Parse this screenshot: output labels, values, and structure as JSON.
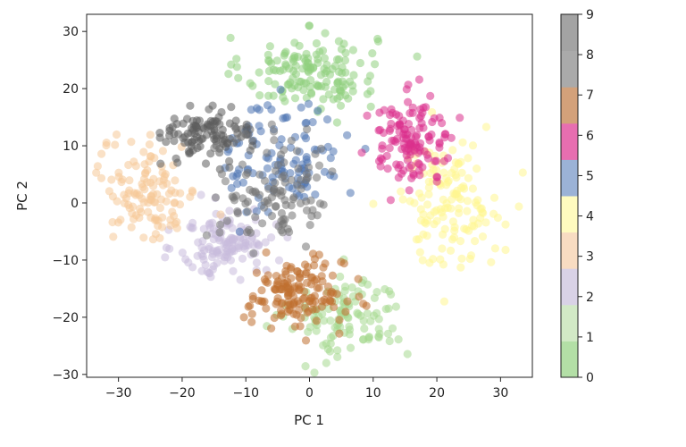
{
  "chart_data": {
    "type": "scatter",
    "title": "",
    "xlabel": "PC 1",
    "ylabel": "PC 2",
    "xlim": [
      -35,
      35
    ],
    "ylim": [
      -30.5,
      33
    ],
    "x_ticks": [
      -30,
      -20,
      -10,
      0,
      10,
      20,
      30
    ],
    "y_ticks": [
      -30,
      -20,
      -10,
      0,
      10,
      20,
      30
    ],
    "x_tick_labels": [
      "−30",
      "−20",
      "−10",
      "0",
      "10",
      "20",
      "30"
    ],
    "y_tick_labels": [
      "−30",
      "−20",
      "−10",
      "0",
      "10",
      "20",
      "30"
    ],
    "grid": false,
    "marker_alpha": 0.55,
    "colorbar": {
      "range": [
        0,
        9
      ],
      "ticks": [
        "0",
        "1",
        "2",
        "3",
        "4",
        "5",
        "6",
        "7",
        "8",
        "9"
      ],
      "colors": [
        "#b3dfa6",
        "#d2e9c6",
        "#d9d2e6",
        "#f8dcc2",
        "#fffbbf",
        "#9bb2d6",
        "#e76eb0",
        "#d3a17a",
        "#aaaaaa",
        "#a3a3a3"
      ]
    },
    "series": [
      {
        "label": "0",
        "color": "#8fcf7e",
        "n": 150,
        "center": [
          0,
          23
        ],
        "spread": [
          7,
          4.5
        ]
      },
      {
        "label": "1",
        "color": "#a5d88f",
        "n": 110,
        "center": [
          6,
          -20
        ],
        "spread": [
          6,
          5
        ]
      },
      {
        "label": "2",
        "color": "#c9bcdc",
        "n": 130,
        "center": [
          -13,
          -7
        ],
        "spread": [
          5,
          4
        ]
      },
      {
        "label": "3",
        "color": "#f5c998",
        "n": 120,
        "center": [
          -25,
          2
        ],
        "spread": [
          5,
          6
        ]
      },
      {
        "label": "4",
        "color": "#fff58f",
        "n": 140,
        "center": [
          22,
          0
        ],
        "spread": [
          5.5,
          7
        ]
      },
      {
        "label": "5",
        "color": "#4e74b3",
        "n": 110,
        "center": [
          -4,
          8
        ],
        "spread": [
          6,
          7
        ]
      },
      {
        "label": "6",
        "color": "#da2f8c",
        "n": 130,
        "center": [
          16,
          11
        ],
        "spread": [
          4.5,
          5
        ]
      },
      {
        "label": "7",
        "color": "#c07030",
        "n": 150,
        "center": [
          -2,
          -16
        ],
        "spread": [
          5,
          4
        ]
      },
      {
        "label": "8",
        "color": "#5d5d5d",
        "n": 110,
        "center": [
          -16,
          12
        ],
        "spread": [
          4.5,
          3
        ]
      },
      {
        "label": "9",
        "color": "#747474",
        "n": 110,
        "center": [
          -5,
          2
        ],
        "spread": [
          6,
          6
        ]
      }
    ]
  }
}
